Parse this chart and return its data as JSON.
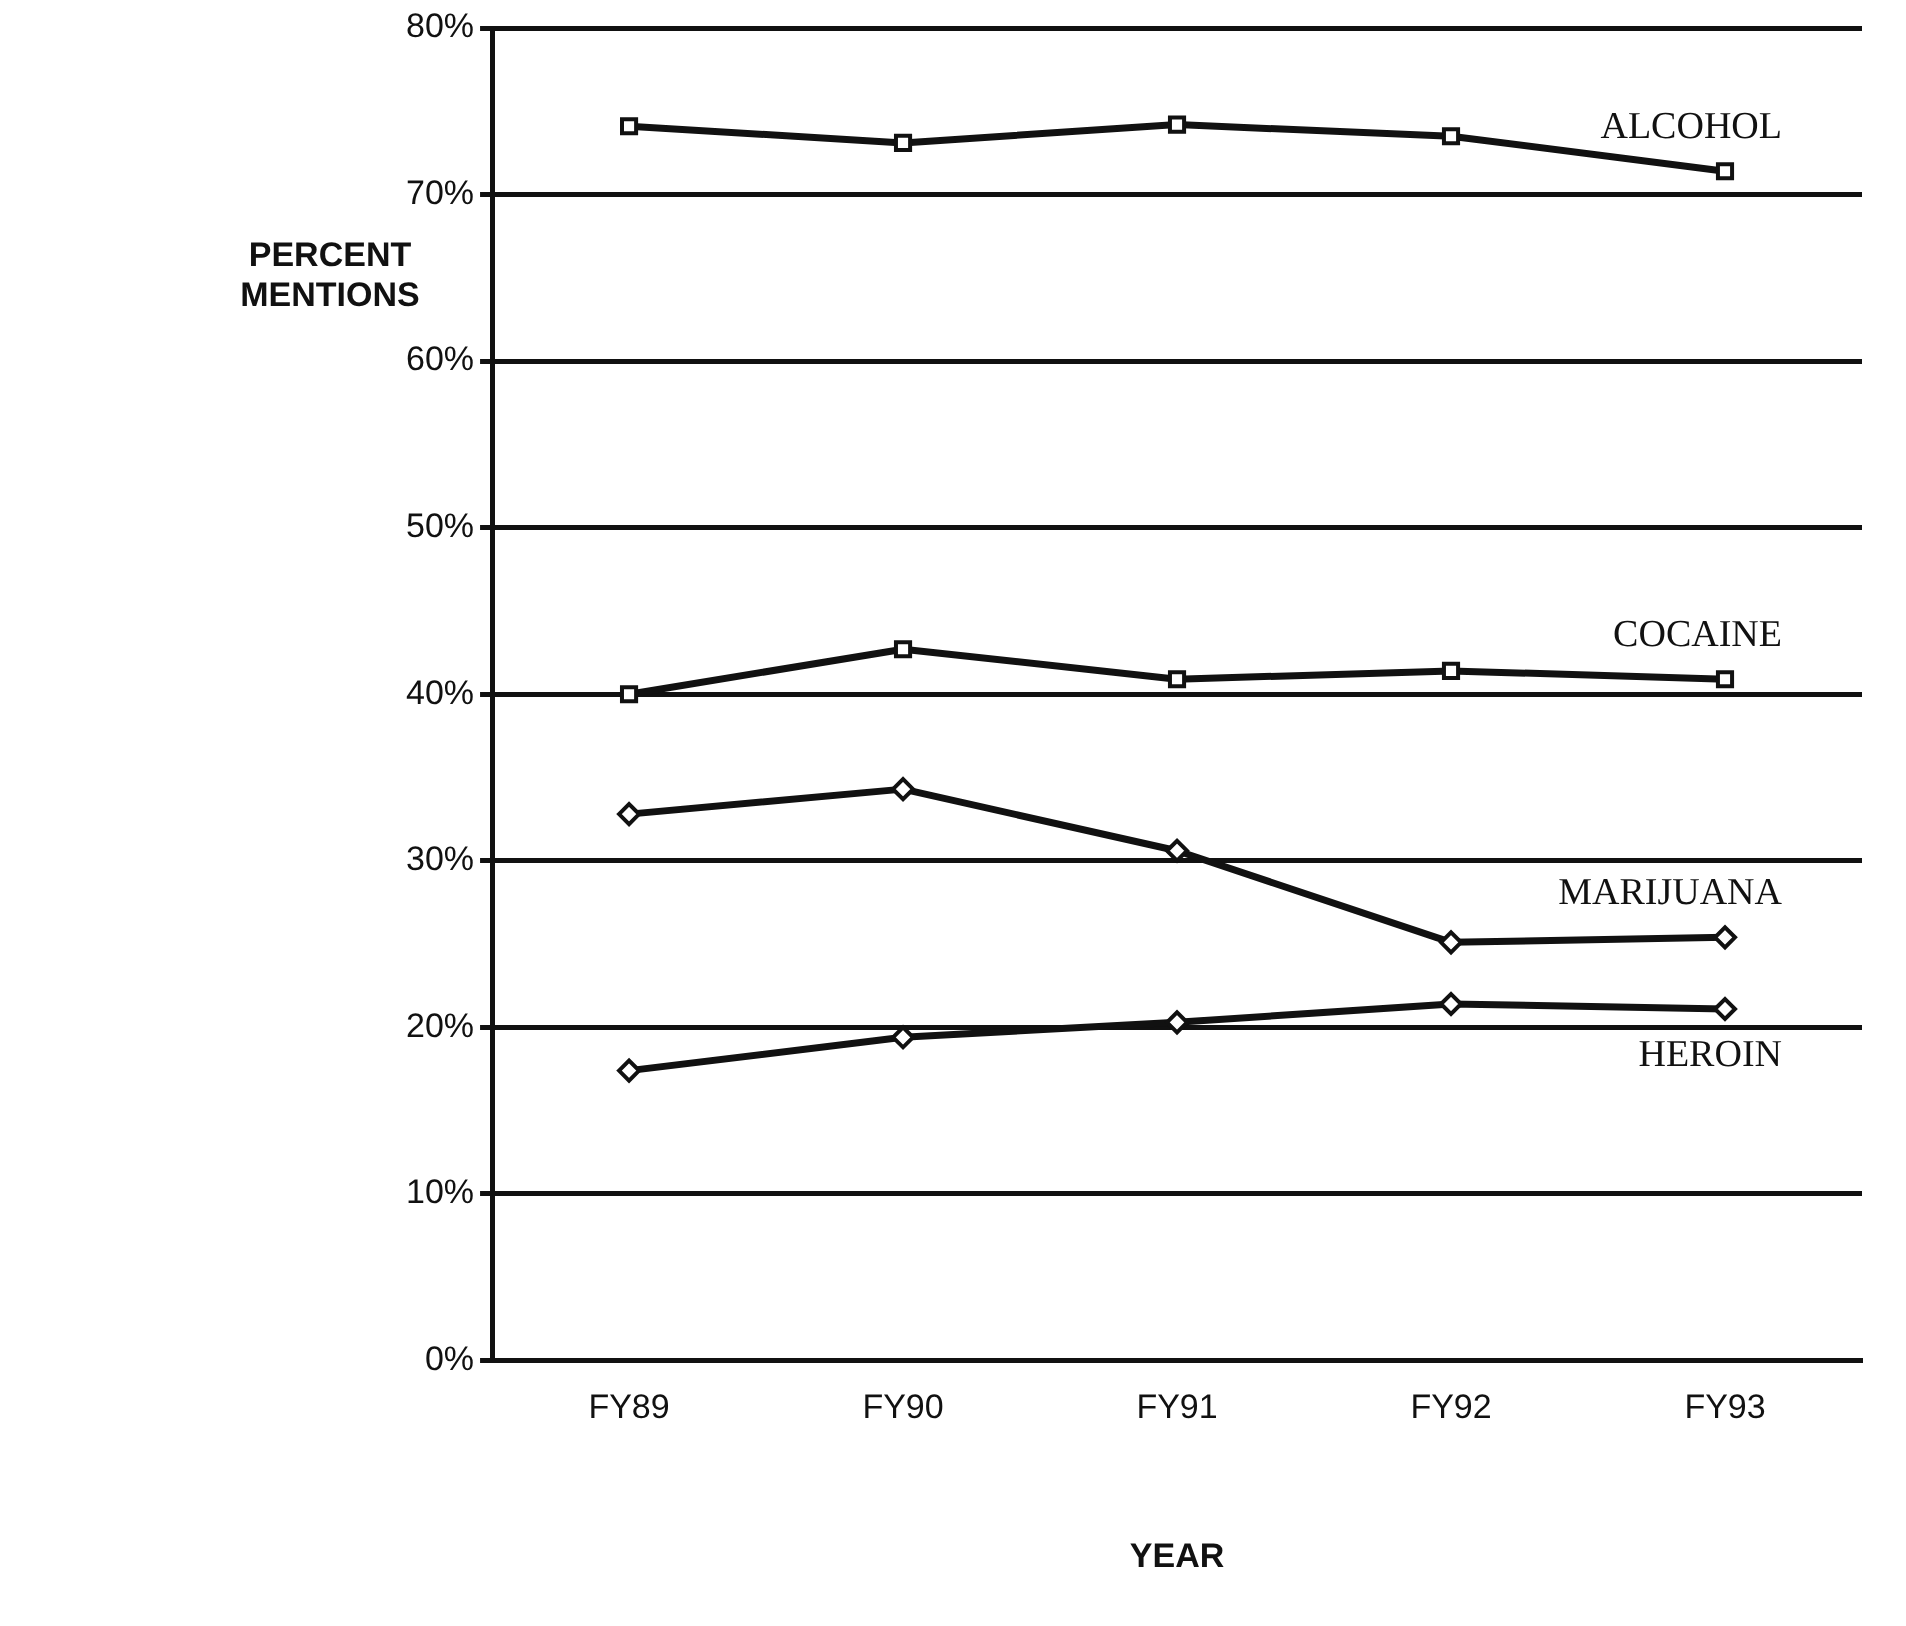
{
  "chart_data": {
    "type": "line",
    "ylabel": "PERCENT MENTIONS",
    "xlabel": "YEAR",
    "categories": [
      "FY89",
      "FY90",
      "FY91",
      "FY92",
      "FY93"
    ],
    "series": [
      {
        "name": "ALCOHOL",
        "color": "#111111",
        "marker": "square",
        "values": [
          74.1,
          73.1,
          74.2,
          73.5,
          71.4
        ]
      },
      {
        "name": "COCAINE",
        "color": "#111111",
        "marker": "square",
        "values": [
          40.0,
          42.7,
          40.9,
          41.4,
          40.9
        ]
      },
      {
        "name": "MARIJUANA",
        "color": "#111111",
        "marker": "diamond",
        "values": [
          32.8,
          34.3,
          30.6,
          25.1,
          25.4
        ]
      },
      {
        "name": "HEROIN",
        "color": "#111111",
        "marker": "diamond",
        "values": [
          17.4,
          19.4,
          20.3,
          21.4,
          21.1
        ]
      }
    ],
    "ylim": [
      0,
      80
    ],
    "yticks": [
      {
        "value": 0,
        "label": "0%"
      },
      {
        "value": 10,
        "label": "10%"
      },
      {
        "value": 20,
        "label": "20%"
      },
      {
        "value": 30,
        "label": "30%"
      },
      {
        "value": 40,
        "label": "40%"
      },
      {
        "value": 50,
        "label": "50%"
      },
      {
        "value": 60,
        "label": "60%"
      },
      {
        "value": 70,
        "label": "70%"
      },
      {
        "value": 80,
        "label": "80%"
      }
    ],
    "grid": "y",
    "legend": false,
    "line_style": "solid"
  }
}
